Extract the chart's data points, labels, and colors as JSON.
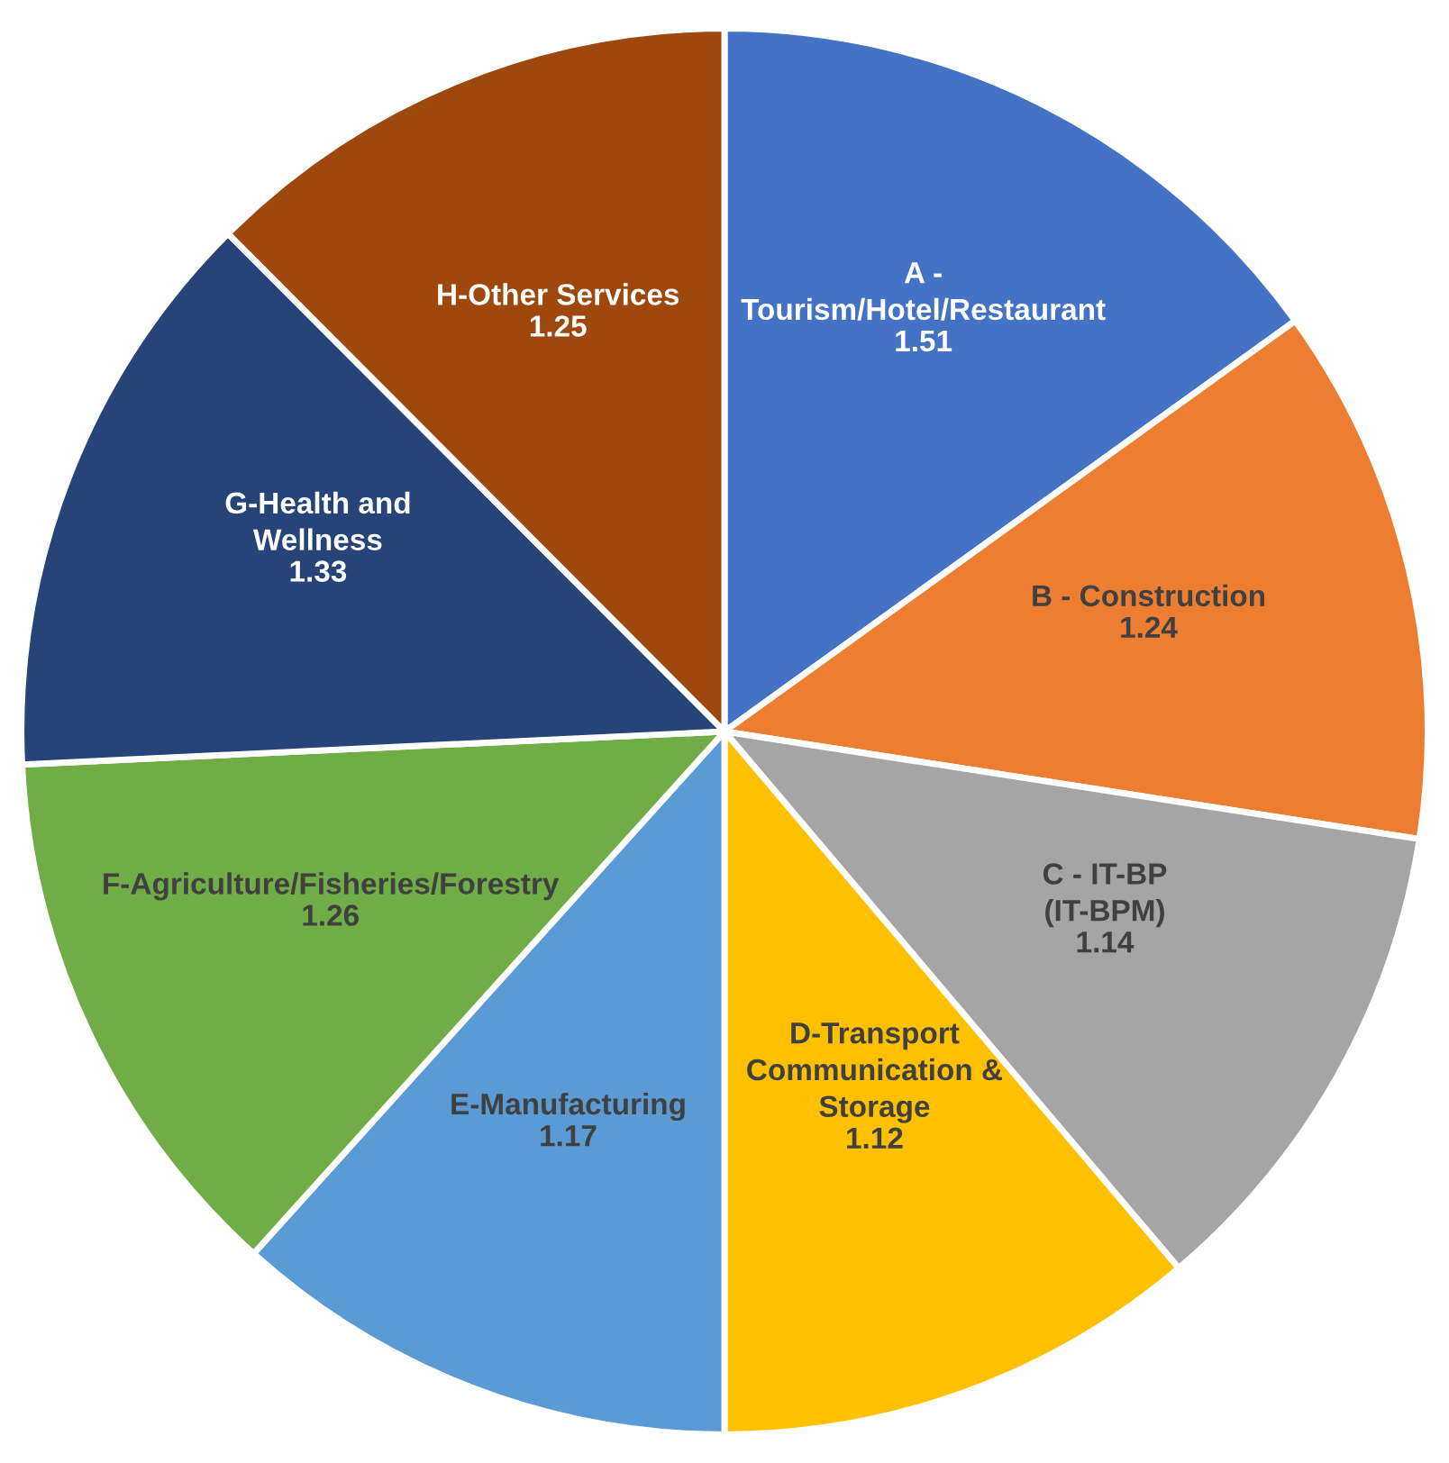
{
  "chart_data": {
    "type": "pie",
    "categories": [
      "A - Tourism/Hotel/Restaurant",
      "B - Construction",
      "C - IT-BP (IT-BPM)",
      "D-Transport Communication & Storage",
      "E-Manufacturing",
      "F-Agriculture/Fisheries/Forestry",
      "G-Health and Wellness",
      "H-Other Services"
    ],
    "values": [
      1.51,
      1.24,
      1.14,
      1.12,
      1.17,
      1.26,
      1.33,
      1.25
    ],
    "colors": [
      "#4472c4",
      "#ed7d31",
      "#a5a5a5",
      "#ffc000",
      "#5b9bd5",
      "#70ad47",
      "#264478",
      "#9e480e"
    ],
    "data_labels": true
  }
}
